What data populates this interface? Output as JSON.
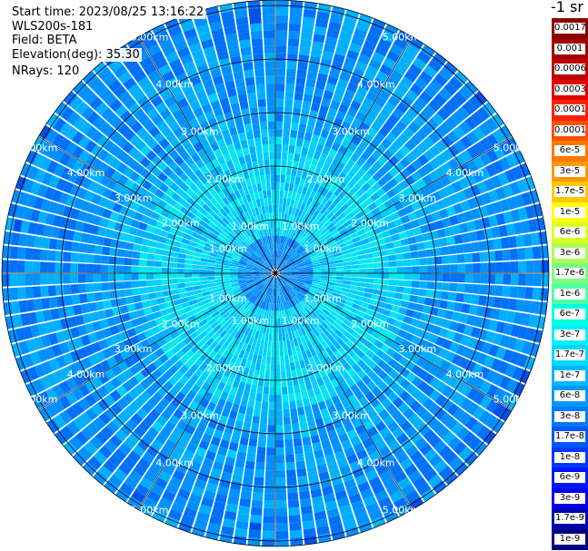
{
  "header": {
    "start_time": "Start time: 2023/08/25 13:16:22",
    "instrument": "WLS200s-181",
    "field": "Field: BETA",
    "elevation": "Elevation(deg): 35.30",
    "nrays": "NRays: 120"
  },
  "colorbar": {
    "unit_label": "-1 sr",
    "ticks": [
      "0.0017",
      "0.001",
      "0.0006",
      "0.0003",
      "0.00017",
      "0.0001",
      "6e-5",
      "3e-5",
      "1.7e-5",
      "1e-5",
      "6e-6",
      "3e-6",
      "1.7e-6",
      "1e-6",
      "6e-7",
      "3e-7",
      "1.7e-7",
      "1e-7",
      "6e-8",
      "3e-8",
      "1.7e-8",
      "1e-8",
      "6e-9",
      "3e-9",
      "1.7e-9",
      "1e-9"
    ],
    "colors": [
      "#8b0000",
      "#a00000",
      "#c00000",
      "#e00000",
      "#ff2000",
      "#ff5000",
      "#ff7800",
      "#ff9800",
      "#ffc800",
      "#ffff00",
      "#d8ff20",
      "#a8ff50",
      "#78ff80",
      "#50ffa8",
      "#00ffe0",
      "#00f0ff",
      "#00d8ff",
      "#00b8ff",
      "#0098ff",
      "#0078ff",
      "#0058ff",
      "#0038ff",
      "#0018ff",
      "#0000e8",
      "#0000b0",
      "#000080"
    ]
  },
  "chart_data": {
    "type": "heatmap",
    "projection": "polar-ppi",
    "n_rays": 120,
    "ring_labels": [
      "1.00km",
      "2.00km",
      "3.00km",
      "4.00km",
      "5.00km"
    ],
    "ring_distances_km": [
      1,
      2,
      3,
      4,
      5
    ],
    "max_range_km": 5.1,
    "spoke_angles_deg": [
      0,
      30,
      60,
      90,
      120,
      150,
      180,
      210,
      240,
      270,
      300,
      330
    ],
    "label_diagonals_deg": [
      45,
      135,
      225,
      315
    ],
    "label_offsets_deg": [
      -17,
      17
    ],
    "typical_value_by_range": [
      {
        "range_km": 0.5,
        "value": "1e-8"
      },
      {
        "range_km": 1.5,
        "value": "1.7e-7"
      },
      {
        "range_km": 2.5,
        "value": "6e-8"
      },
      {
        "range_km": 4.0,
        "value": "3e-8"
      },
      {
        "range_km": 5.0,
        "value": "1.7e-8"
      }
    ]
  }
}
